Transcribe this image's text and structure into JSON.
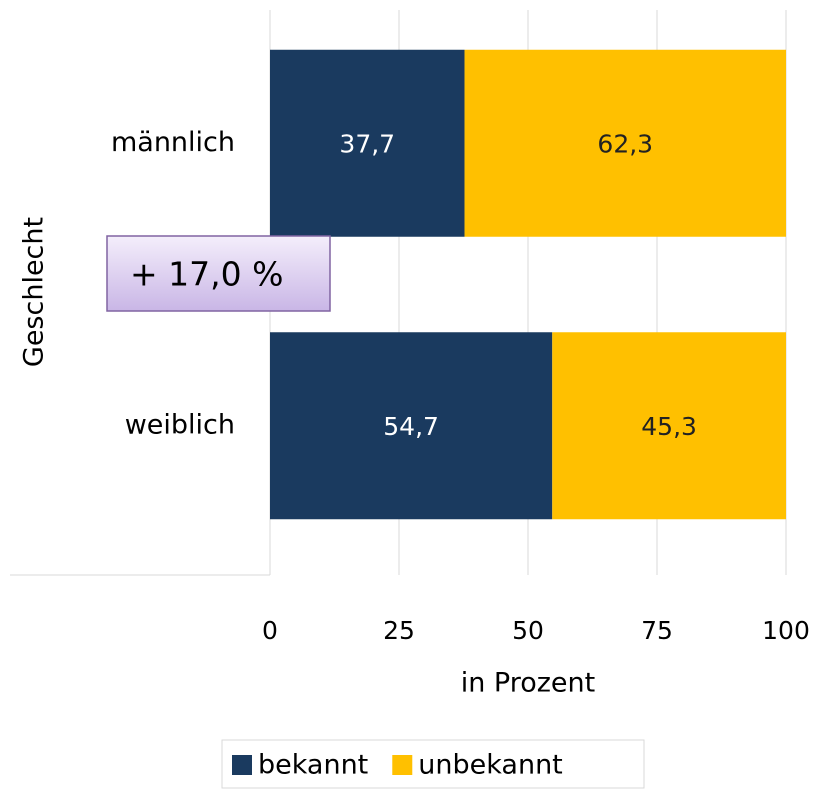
{
  "chart_data": {
    "type": "stacked_barh",
    "categories": [
      "männlich",
      "weiblich"
    ],
    "series": [
      {
        "name": "bekannt",
        "color": "#1a3a5f",
        "values": [
          37.7,
          54.7
        ],
        "value_labels": [
          "37,7",
          "54,7"
        ]
      },
      {
        "name": "unbekannt",
        "color": "#ffc000",
        "values": [
          62.3,
          45.3
        ],
        "value_labels": [
          "62,3",
          "45,3"
        ]
      }
    ],
    "xlim": [
      0,
      100
    ],
    "xticks": [
      0,
      25,
      50,
      75,
      100
    ],
    "xlabel": "in Prozent",
    "ylabel": "Geschlecht",
    "annotation": "+ 17,0 %",
    "grid": true
  }
}
